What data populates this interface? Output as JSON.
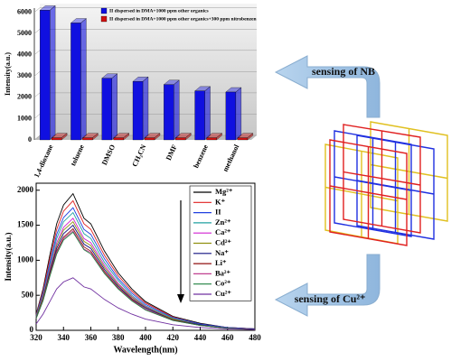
{
  "chart_data": [
    {
      "type": "bar",
      "categories": [
        "1,4-dioxane",
        "toluene",
        "DMSO",
        "CH₃CN",
        "DMF",
        "benzene",
        "methanol"
      ],
      "series": [
        {
          "name": "II dispersed in DMA+1000 ppm other organics",
          "color": "#1010e0",
          "values": [
            6100,
            5500,
            2900,
            2750,
            2600,
            2300,
            2250
          ]
        },
        {
          "name": "II dispersed in DMA+1000 ppm other organics+300 ppm nitrobenzen",
          "color": "#d01010",
          "values": [
            100,
            100,
            100,
            100,
            100,
            100,
            100
          ]
        }
      ],
      "ylabel": "Intensity(a.u.)",
      "ylim": [
        0,
        6200
      ],
      "yticks": [
        0,
        1000,
        2000,
        3000,
        4000,
        5000,
        6000
      ],
      "grid": true,
      "legend": "top-right"
    },
    {
      "type": "line",
      "x": [
        320,
        325,
        330,
        335,
        340,
        347,
        355,
        360,
        370,
        380,
        390,
        400,
        420,
        440,
        460,
        480
      ],
      "series": [
        {
          "name": "Mg²⁺",
          "color": "#000000",
          "values": [
            230,
            590,
            1070,
            1520,
            1790,
            1950,
            1600,
            1520,
            1130,
            820,
            590,
            410,
            200,
            100,
            40,
            20
          ]
        },
        {
          "name": "K⁺",
          "color": "#e02020",
          "values": [
            220,
            560,
            1020,
            1440,
            1700,
            1850,
            1520,
            1440,
            1070,
            780,
            560,
            390,
            190,
            90,
            40,
            20
          ]
        },
        {
          "name": "II",
          "color": "#2040e0",
          "values": [
            210,
            530,
            960,
            1370,
            1610,
            1750,
            1440,
            1370,
            1020,
            740,
            530,
            370,
            180,
            90,
            40,
            20
          ]
        },
        {
          "name": "Zn²⁺",
          "color": "#20a0a0",
          "values": [
            200,
            500,
            920,
            1310,
            1550,
            1680,
            1380,
            1310,
            970,
            710,
            500,
            350,
            170,
            80,
            30,
            20
          ]
        },
        {
          "name": "Ca²⁺",
          "color": "#d020d0",
          "values": [
            190,
            480,
            880,
            1250,
            1470,
            1600,
            1310,
            1250,
            930,
            670,
            480,
            340,
            160,
            80,
            30,
            20
          ]
        },
        {
          "name": "Cd²⁺",
          "color": "#909010",
          "values": [
            190,
            470,
            850,
            1210,
            1430,
            1550,
            1270,
            1210,
            900,
            650,
            470,
            330,
            160,
            80,
            30,
            20
          ]
        },
        {
          "name": "Na⁺",
          "color": "#101080",
          "values": [
            180,
            450,
            830,
            1170,
            1380,
            1500,
            1230,
            1170,
            870,
            630,
            450,
            320,
            150,
            80,
            30,
            20
          ]
        },
        {
          "name": "Li⁺",
          "color": "#901010",
          "values": [
            170,
            440,
            800,
            1130,
            1330,
            1450,
            1190,
            1130,
            840,
            610,
            440,
            300,
            150,
            70,
            30,
            10
          ]
        },
        {
          "name": "Ba²⁺",
          "color": "#c04090",
          "values": [
            170,
            430,
            780,
            1110,
            1310,
            1420,
            1160,
            1110,
            820,
            600,
            430,
            300,
            140,
            70,
            30,
            10
          ]
        },
        {
          "name": "Co²⁺",
          "color": "#208040",
          "values": [
            170,
            420,
            770,
            1090,
            1290,
            1400,
            1150,
            1090,
            810,
            590,
            420,
            290,
            140,
            70,
            30,
            10
          ]
        },
        {
          "name": "Cu²⁺",
          "color": "#7030a0",
          "values": [
            90,
            230,
            410,
            590,
            690,
            750,
            620,
            590,
            440,
            320,
            230,
            160,
            80,
            40,
            20,
            10
          ]
        }
      ],
      "xlabel": "Wavelength(nm)",
      "ylabel": "Intensity(a.u.)",
      "xlim": [
        320,
        480
      ],
      "xticks": [
        320,
        340,
        360,
        380,
        400,
        420,
        440,
        460,
        480
      ],
      "ylim": [
        0,
        2100
      ],
      "yticks": [
        0,
        500,
        1000,
        1500,
        2000
      ],
      "legend": "top-right"
    }
  ],
  "labels": {
    "top_arrow": "sensing of NB",
    "bottom_arrow": "sensing of Cu²⁺"
  }
}
